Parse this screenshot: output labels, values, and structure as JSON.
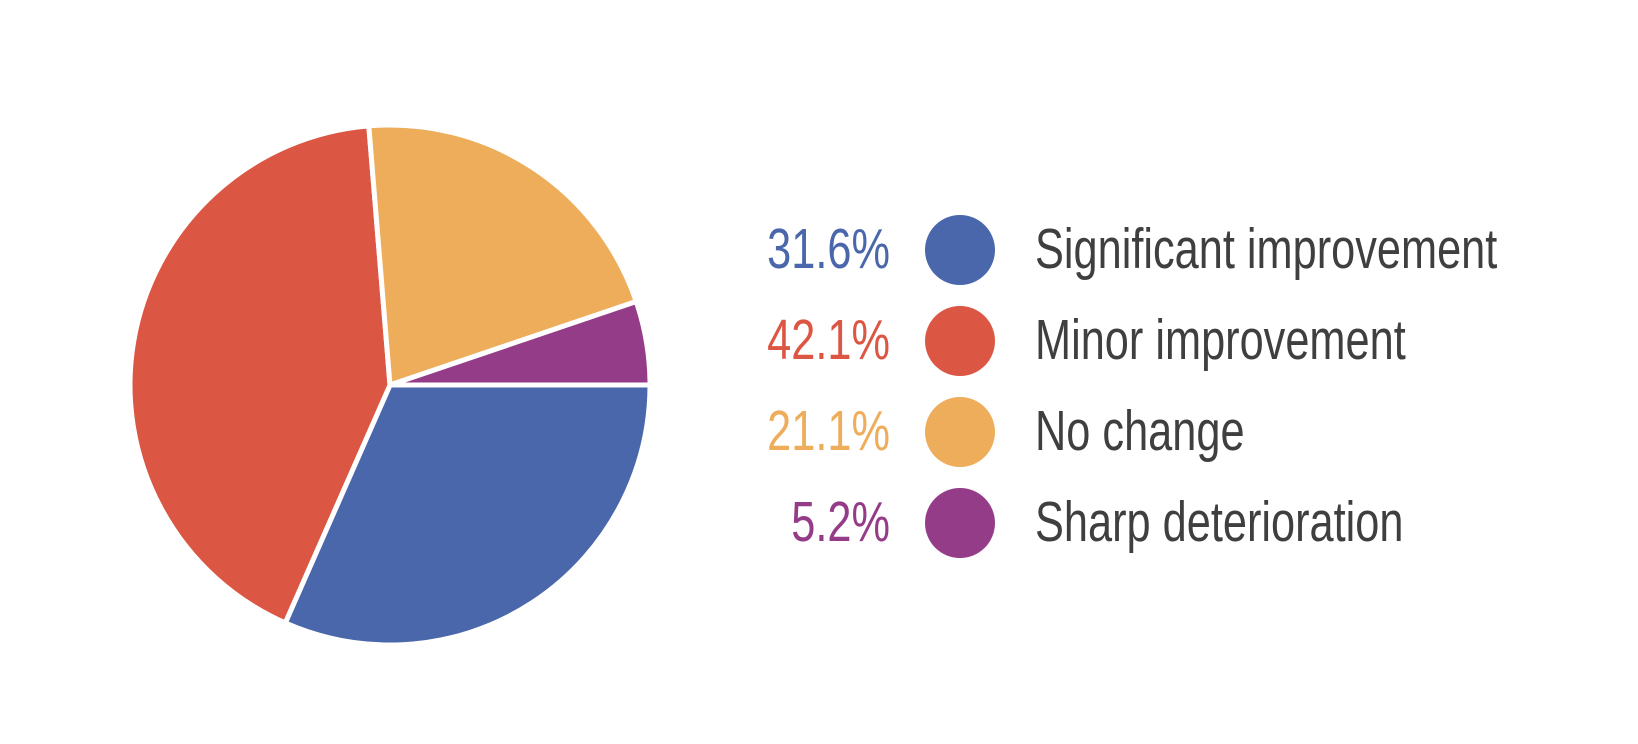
{
  "chart_data": {
    "type": "pie",
    "title": "",
    "slices": [
      {
        "label": "Significant improvement",
        "value": 31.6,
        "pct_label": "31.6%",
        "color": "#4A67AB"
      },
      {
        "label": "Minor improvement",
        "value": 42.1,
        "pct_label": "42.1%",
        "color": "#DC5644"
      },
      {
        "label": "No change",
        "value": 21.1,
        "pct_label": "21.1%",
        "color": "#EEAD5B"
      },
      {
        "label": "Sharp deterioration",
        "value": 5.2,
        "pct_label": "5.2%",
        "color": "#943C88"
      }
    ],
    "layout": {
      "start_angle_deg": 0,
      "direction": "clockwise",
      "legend_position": "right",
      "slice_gap_color": "#FFFFFF",
      "label_text_color": "#3F3F3F",
      "background": "#FFFFFF"
    }
  }
}
